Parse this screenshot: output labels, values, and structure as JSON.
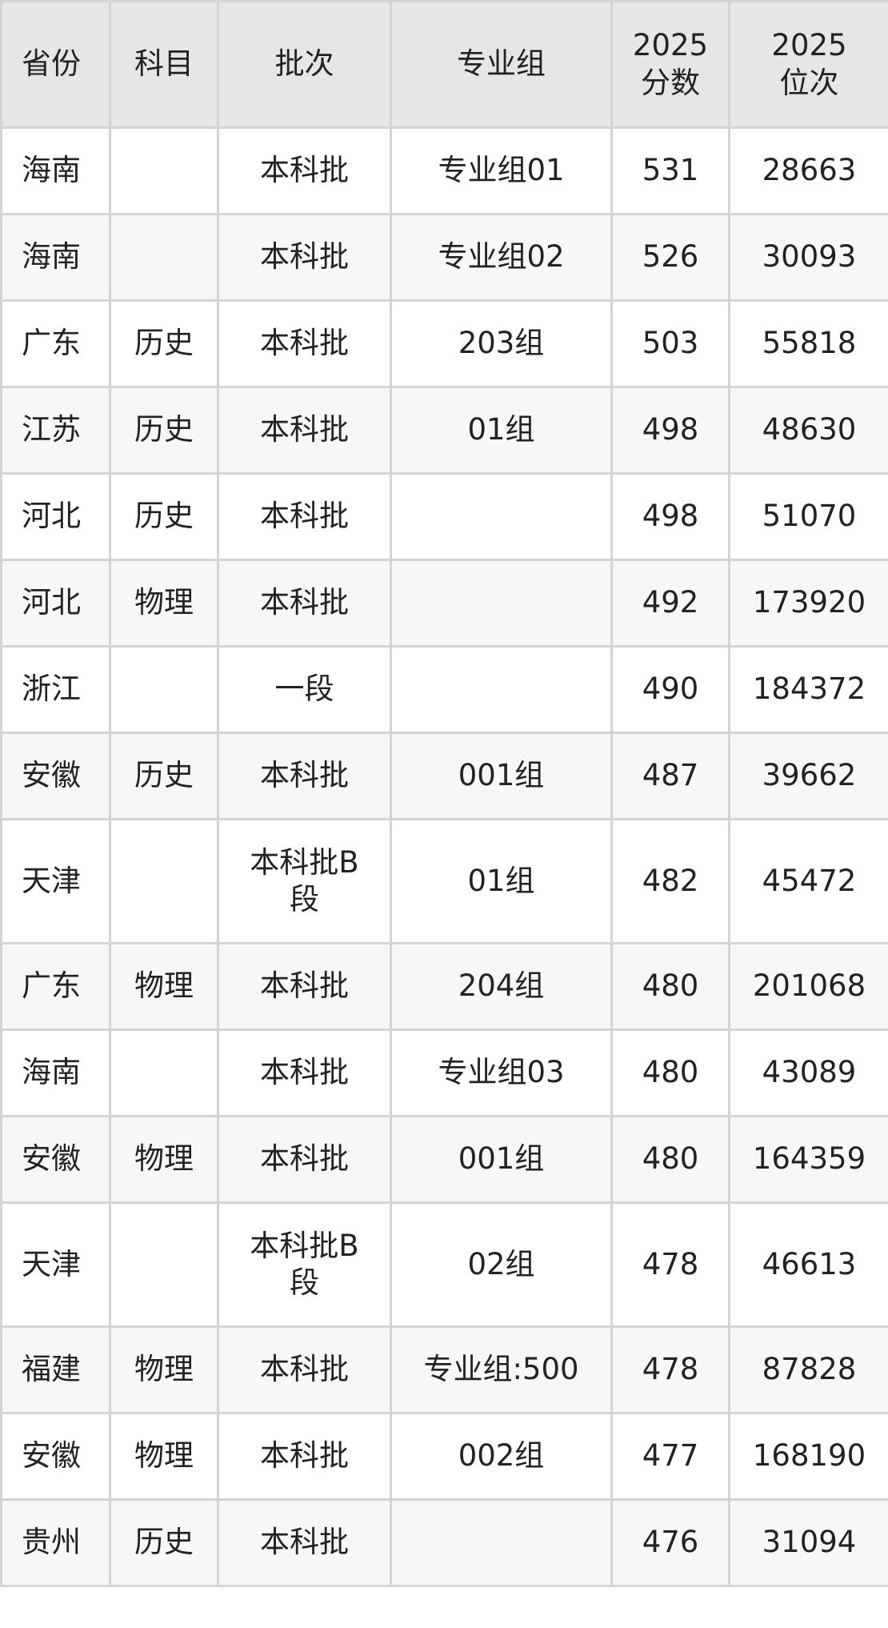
{
  "headers": [
    "省份",
    "科目",
    "批次",
    "专业组",
    "2025\n分数",
    "2025\n位次"
  ],
  "rows": [
    [
      "海南",
      "",
      "本科批",
      "专业组01",
      "531",
      "28663"
    ],
    [
      "海南",
      "",
      "本科批",
      "专业组02",
      "526",
      "30093"
    ],
    [
      "广东",
      "历史",
      "本科批",
      "203组",
      "503",
      "55818"
    ],
    [
      "江苏",
      "历史",
      "本科批",
      "01组",
      "498",
      "48630"
    ],
    [
      "河北",
      "历史",
      "本科批",
      "",
      "498",
      "51070"
    ],
    [
      "河北",
      "物理",
      "本科批",
      "",
      "492",
      "173920"
    ],
    [
      "浙江",
      "",
      "一段",
      "",
      "490",
      "184372"
    ],
    [
      "安徽",
      "历史",
      "本科批",
      "001组",
      "487",
      "39662"
    ],
    [
      "天津",
      "",
      "本科批B段",
      "01组",
      "482",
      "45472"
    ],
    [
      "广东",
      "物理",
      "本科批",
      "204组",
      "480",
      "201068"
    ],
    [
      "海南",
      "",
      "本科批",
      "专业组03",
      "480",
      "43089"
    ],
    [
      "安徽",
      "物理",
      "本科批",
      "001组",
      "480",
      "164359"
    ],
    [
      "天津",
      "",
      "本科批B段",
      "02组",
      "478",
      "46613"
    ],
    [
      "福建",
      "物理",
      "本科批",
      "专业组:500",
      "478",
      "87828"
    ],
    [
      "安徽",
      "物理",
      "本科批",
      "002组",
      "477",
      "168190"
    ],
    [
      "贵州",
      "历史",
      "本科批",
      "",
      "476",
      "31094"
    ]
  ]
}
